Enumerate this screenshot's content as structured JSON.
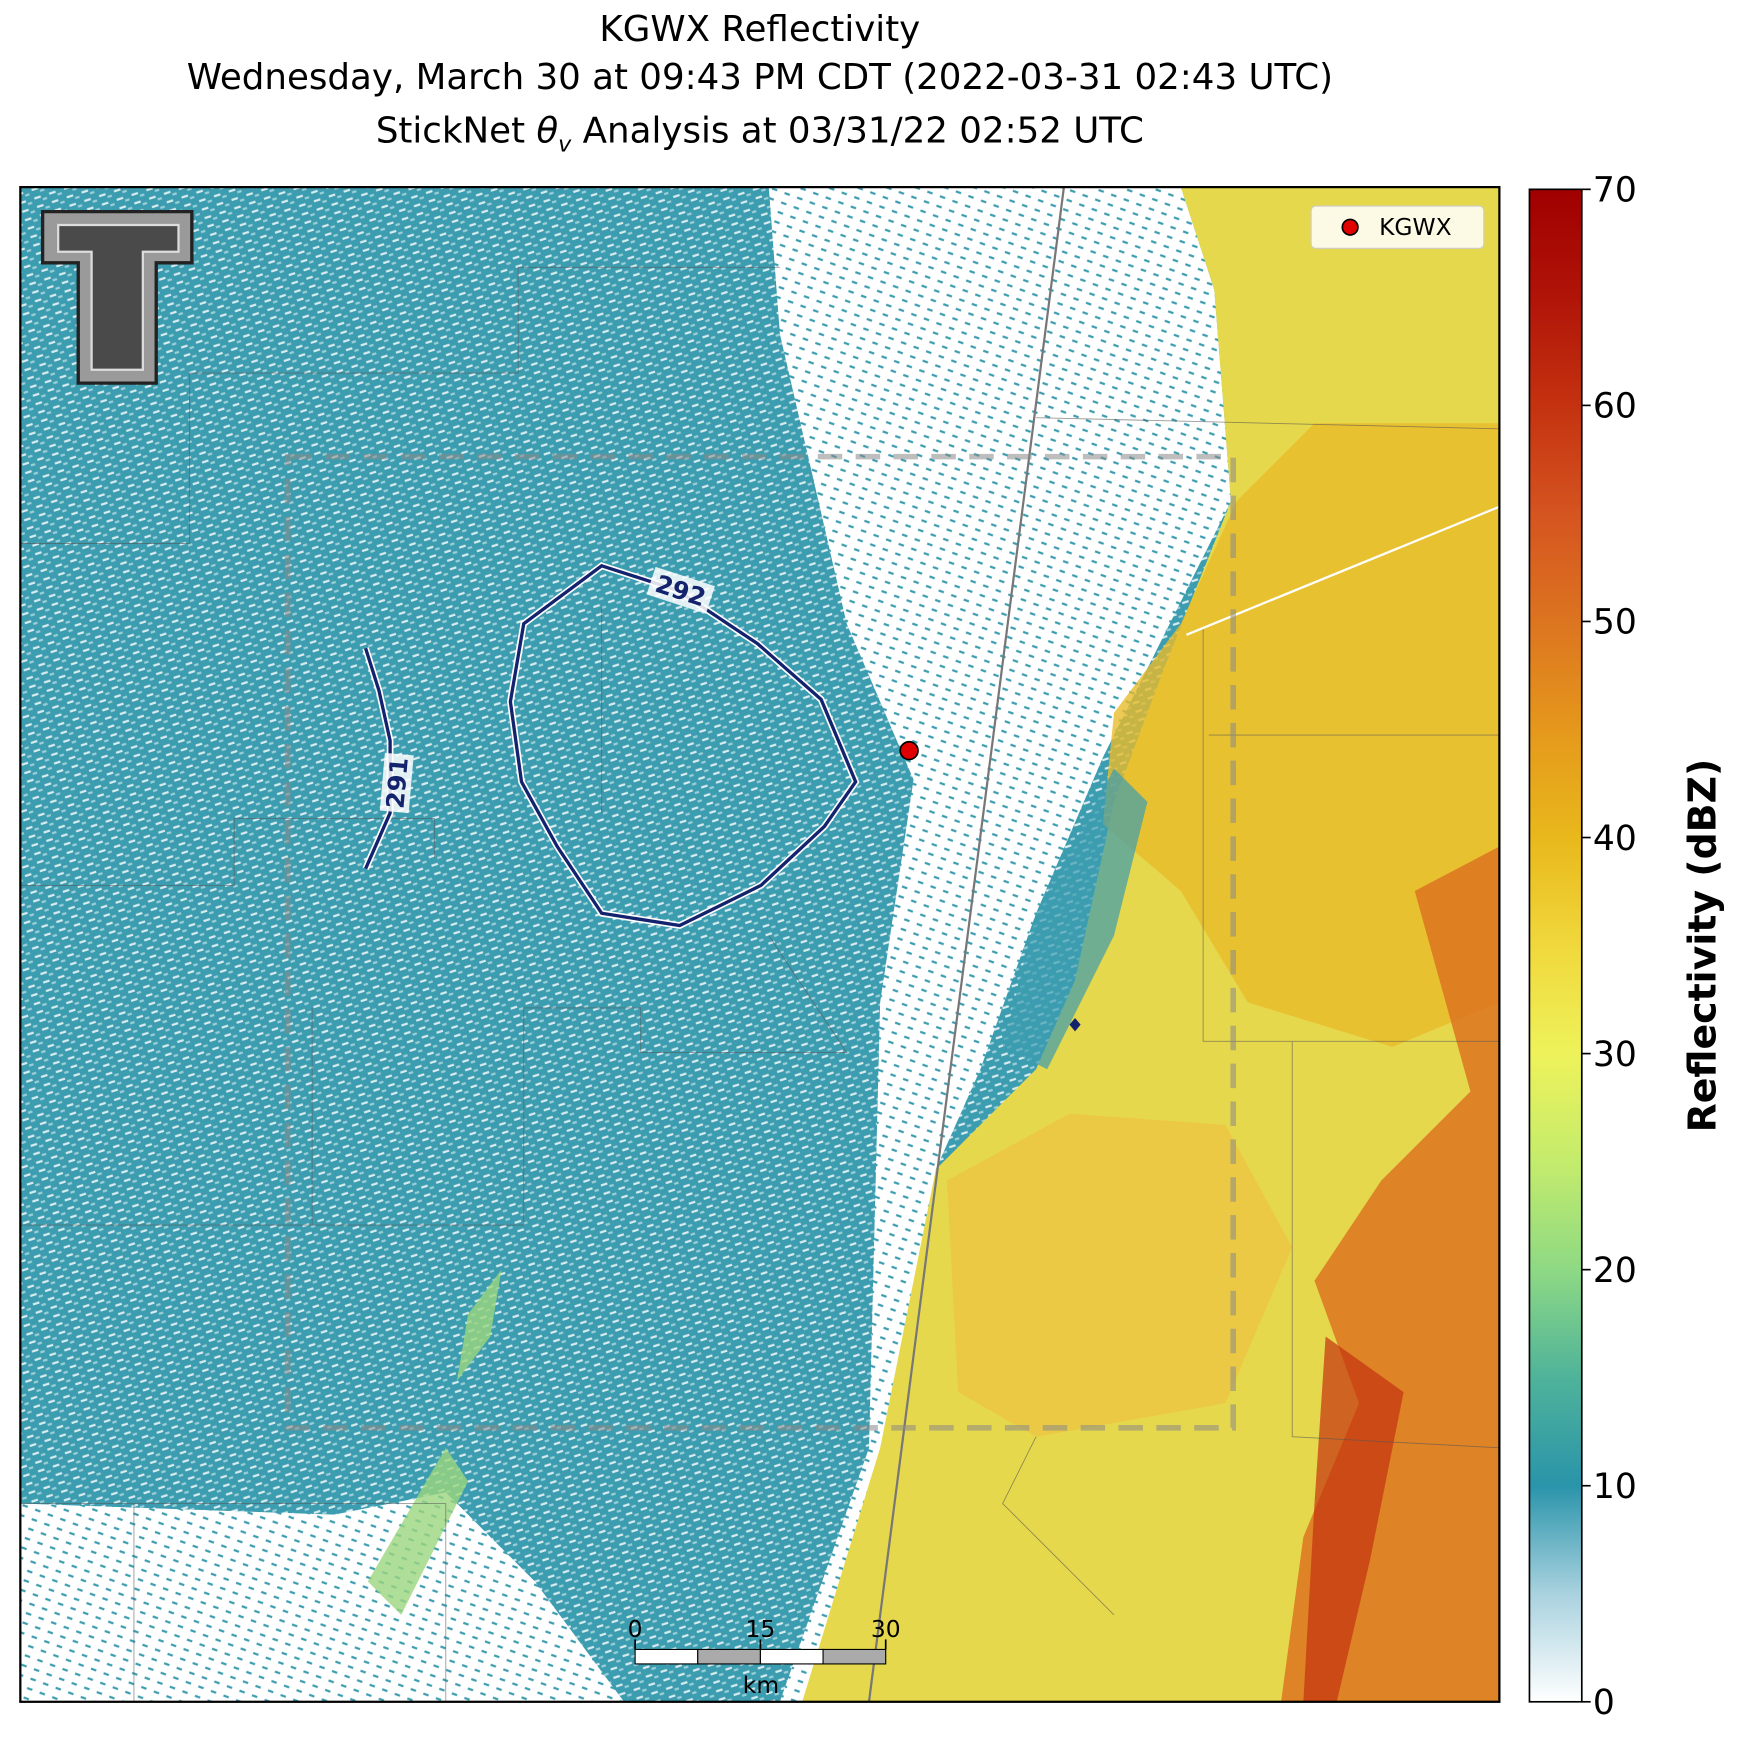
{
  "title": {
    "line1": "KGWX Reflectivity",
    "line2": "Wednesday, March 30 at 09:43 PM CDT (2022-03-31 02:43 UTC)",
    "line3": {
      "before": "StickNet ",
      "symbol": "θ",
      "subscript": "v",
      "after": " Analysis at 03/31/22 02:52 UTC"
    }
  },
  "legend": {
    "label": "KGWX",
    "color": "#e00000"
  },
  "contours": [
    {
      "label": "292"
    },
    {
      "label": "291"
    }
  ],
  "colorbar": {
    "label": "Reflectivity (dBZ)",
    "lim": [
      0,
      70
    ],
    "ticks": [
      0,
      10,
      20,
      30,
      40,
      50,
      60,
      70
    ],
    "stops": [
      {
        "value": 0,
        "color": "#ffffff"
      },
      {
        "value": 5,
        "color": "#a9d2df"
      },
      {
        "value": 10,
        "color": "#2a94aa"
      },
      {
        "value": 15,
        "color": "#4fb39a"
      },
      {
        "value": 20,
        "color": "#8ed984"
      },
      {
        "value": 25,
        "color": "#c4ec6c"
      },
      {
        "value": 30,
        "color": "#eef25a"
      },
      {
        "value": 35,
        "color": "#f0d83c"
      },
      {
        "value": 40,
        "color": "#e8b81c"
      },
      {
        "value": 45,
        "color": "#e5981c"
      },
      {
        "value": 50,
        "color": "#dc7420"
      },
      {
        "value": 55,
        "color": "#d55420"
      },
      {
        "value": 60,
        "color": "#c43210"
      },
      {
        "value": 65,
        "color": "#b01408"
      },
      {
        "value": 70,
        "color": "#a00000"
      }
    ]
  },
  "scale_bar": {
    "lim": [
      0,
      30
    ],
    "ticks": [
      0,
      15,
      30
    ],
    "unit": "km"
  }
}
